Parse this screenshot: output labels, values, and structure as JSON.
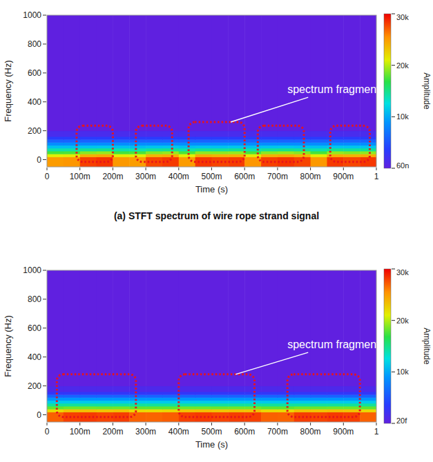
{
  "chart_data": [
    {
      "type": "heatmap",
      "xlabel": "Time (s)",
      "ylabel": "Frequency (Hz)",
      "colorbar_label": "Amplitude",
      "caption": "(a) STFT spectrum of wire rope strand signal",
      "xlim": [
        0,
        1
      ],
      "ylim": [
        -50,
        1000
      ],
      "xticks": [
        0,
        {
          "value": 0.1,
          "label": "100m"
        },
        {
          "value": 0.2,
          "label": "200m"
        },
        {
          "value": 0.3,
          "label": "300m"
        },
        {
          "value": 0.4,
          "label": "400m"
        },
        {
          "value": 0.5,
          "label": "500m"
        },
        {
          "value": 0.6,
          "label": "600m"
        },
        {
          "value": 0.7,
          "label": "700m"
        },
        {
          "value": 0.8,
          "label": "800m"
        },
        {
          "value": 0.9,
          "label": "900m"
        },
        1
      ],
      "yticks": [
        0,
        200,
        400,
        600,
        800,
        1000
      ],
      "time_bins": [
        0,
        0.05,
        0.1,
        0.15,
        0.2,
        0.25,
        0.3,
        0.35,
        0.4,
        0.45,
        0.5,
        0.55,
        0.6,
        0.65,
        0.7,
        0.75,
        0.8,
        0.85,
        0.9,
        0.95,
        1
      ],
      "freq_bins": [
        -50,
        20,
        40,
        60,
        80,
        100,
        120,
        140,
        160,
        200,
        1000
      ],
      "cells": [
        [
          25000,
          25200,
          28000,
          28400,
          25100,
          24900,
          27800,
          28200,
          25000,
          28300,
          27900,
          28100,
          25200,
          28000,
          28400,
          27900,
          25100,
          28200,
          27800,
          28300
        ],
        [
          21000,
          21200,
          24000,
          24300,
          21100,
          20900,
          23800,
          24100,
          21000,
          24200,
          23900,
          24000,
          21200,
          24000,
          24300,
          23800,
          21100,
          24100,
          23900,
          24200
        ],
        [
          17500,
          17600,
          19000,
          19300,
          17400,
          17500,
          18900,
          19200,
          17600,
          19100,
          19000,
          19200,
          17500,
          19000,
          19300,
          18900,
          17400,
          19200,
          18900,
          19100
        ],
        [
          14000,
          14100,
          14600,
          14800,
          14000,
          13900,
          14500,
          14700,
          14100,
          14600,
          14500,
          14700,
          14000,
          14600,
          14800,
          14500,
          14000,
          14700,
          14500,
          14600
        ],
        [
          11000,
          11000,
          11200,
          11300,
          11000,
          10900,
          11200,
          11300,
          11000,
          11200,
          11100,
          11300,
          11000,
          11200,
          11300,
          11100,
          11000,
          11300,
          11200,
          11200
        ],
        [
          8500,
          8500,
          8500,
          8500,
          8500,
          8500,
          8500,
          8500,
          8500,
          8500,
          8500,
          8500,
          8500,
          8500,
          8500,
          8500,
          8500,
          8500,
          8500,
          8500
        ],
        [
          6000,
          6000,
          6000,
          6000,
          6000,
          6000,
          6000,
          6000,
          6000,
          6000,
          6000,
          6000,
          6000,
          6000,
          6000,
          6000,
          6000,
          6000,
          6000,
          6000
        ],
        [
          3500,
          3500,
          3500,
          3500,
          3500,
          3500,
          3500,
          3500,
          3500,
          3500,
          3500,
          3500,
          3500,
          3500,
          3500,
          3500,
          3500,
          3500,
          3500,
          3500
        ],
        [
          1500,
          1500,
          1500,
          1500,
          1500,
          1500,
          1500,
          1500,
          1500,
          1500,
          1500,
          1500,
          1500,
          1500,
          1500,
          1500,
          1500,
          1500,
          1500,
          1500
        ],
        [
          50,
          50,
          50,
          50,
          50,
          50,
          50,
          50,
          50,
          50,
          50,
          50,
          50,
          50,
          50,
          50,
          50,
          50,
          50,
          50
        ]
      ],
      "colorbar_range": [
        6e-08,
        30000
      ],
      "colorbar_ticks": [
        {
          "value": 30000,
          "label": "30k"
        },
        {
          "value": 20000,
          "label": "20k"
        },
        {
          "value": 10000,
          "label": "10k"
        },
        {
          "value": 6e-08,
          "label": "60n"
        }
      ],
      "fragments": [
        {
          "start": 0.09,
          "end": 0.2,
          "low": -15,
          "high": 235
        },
        {
          "start": 0.27,
          "end": 0.38,
          "low": -15,
          "high": 235
        },
        {
          "start": 0.43,
          "end": 0.6,
          "low": -15,
          "high": 260
        },
        {
          "start": 0.64,
          "end": 0.78,
          "low": -15,
          "high": 235
        },
        {
          "start": 0.86,
          "end": 0.98,
          "low": -15,
          "high": 235
        }
      ],
      "annotation": {
        "text": "spectrum fragment",
        "x": 0.73,
        "y": 460,
        "target": 2
      }
    },
    {
      "type": "heatmap",
      "xlabel": "Time (s)",
      "ylabel": "Frequency (Hz)",
      "colorbar_label": "Amplitude",
      "xlim": [
        0,
        1
      ],
      "ylim": [
        -50,
        1000
      ],
      "xticks": [
        0,
        {
          "value": 0.1,
          "label": "100m"
        },
        {
          "value": 0.2,
          "label": "200m"
        },
        {
          "value": 0.3,
          "label": "300m"
        },
        {
          "value": 0.4,
          "label": "400m"
        },
        {
          "value": 0.5,
          "label": "500m"
        },
        {
          "value": 0.6,
          "label": "600m"
        },
        {
          "value": 0.7,
          "label": "700m"
        },
        {
          "value": 0.8,
          "label": "800m"
        },
        {
          "value": 0.9,
          "label": "900m"
        },
        1
      ],
      "yticks": [
        0,
        200,
        400,
        600,
        800,
        1000
      ],
      "time_bins": [
        0,
        0.05,
        0.1,
        0.15,
        0.2,
        0.25,
        0.3,
        0.35,
        0.4,
        0.45,
        0.5,
        0.55,
        0.6,
        0.65,
        0.7,
        0.75,
        0.8,
        0.85,
        0.9,
        0.95,
        1
      ],
      "freq_bins": [
        -50,
        20,
        40,
        60,
        80,
        100,
        120,
        140,
        160,
        200,
        1000
      ],
      "cells": [
        [
          27000,
          28000,
          28200,
          27900,
          28100,
          27000,
          26900,
          27100,
          28000,
          28200,
          27900,
          28100,
          28000,
          27000,
          26900,
          28100,
          27900,
          28200,
          28000,
          27000
        ],
        [
          22000,
          23000,
          23200,
          22900,
          23100,
          22000,
          21900,
          22100,
          23000,
          23200,
          22900,
          23100,
          23000,
          22000,
          21900,
          23100,
          22900,
          23200,
          23000,
          22000
        ],
        [
          18000,
          18400,
          18400,
          18300,
          18400,
          18000,
          18000,
          18000,
          18400,
          18400,
          18300,
          18400,
          18400,
          18000,
          18000,
          18400,
          18300,
          18400,
          18400,
          18000
        ],
        [
          14500,
          14500,
          14500,
          14500,
          14500,
          14500,
          14500,
          14500,
          14500,
          14500,
          14500,
          14500,
          14500,
          14500,
          14500,
          14500,
          14500,
          14500,
          14500,
          14500
        ],
        [
          11500,
          11500,
          11500,
          11500,
          11500,
          11500,
          11500,
          11500,
          11500,
          11500,
          11500,
          11500,
          11500,
          11500,
          11500,
          11500,
          11500,
          11500,
          11500,
          11500
        ],
        [
          9000,
          9000,
          9000,
          9000,
          9000,
          9000,
          9000,
          9000,
          9000,
          9000,
          9000,
          9000,
          9000,
          9000,
          9000,
          9000,
          9000,
          9000,
          9000,
          9000
        ],
        [
          6000,
          6000,
          6000,
          6000,
          6000,
          6000,
          6000,
          6000,
          6000,
          6000,
          6000,
          6000,
          6000,
          6000,
          6000,
          6000,
          6000,
          6000,
          6000,
          6000
        ],
        [
          3000,
          3000,
          3000,
          3000,
          3000,
          3000,
          3000,
          3000,
          3000,
          3000,
          3000,
          3000,
          3000,
          3000,
          3000,
          3000,
          3000,
          3000,
          3000,
          3000
        ],
        [
          1200,
          1200,
          1200,
          1200,
          1200,
          1200,
          1200,
          1200,
          1200,
          1200,
          1200,
          1200,
          1200,
          1200,
          1200,
          1200,
          1200,
          1200,
          1200,
          1200
        ],
        [
          30,
          30,
          30,
          30,
          30,
          30,
          30,
          30,
          30,
          30,
          30,
          30,
          30,
          30,
          30,
          30,
          30,
          30,
          30,
          30
        ]
      ],
      "colorbar_range": [
        2e-14,
        30000
      ],
      "colorbar_ticks": [
        {
          "value": 30000,
          "label": "30k"
        },
        {
          "value": 20000,
          "label": "20k"
        },
        {
          "value": 10000,
          "label": "10k"
        },
        {
          "value": 2e-14,
          "label": "20f"
        }
      ],
      "fragments": [
        {
          "start": 0.03,
          "end": 0.27,
          "low": -15,
          "high": 280
        },
        {
          "start": 0.4,
          "end": 0.63,
          "low": -15,
          "high": 280
        },
        {
          "start": 0.73,
          "end": 0.95,
          "low": -15,
          "high": 280
        }
      ],
      "annotation": {
        "text": "spectrum fragment",
        "x": 0.73,
        "y": 460,
        "target": 1
      }
    }
  ]
}
